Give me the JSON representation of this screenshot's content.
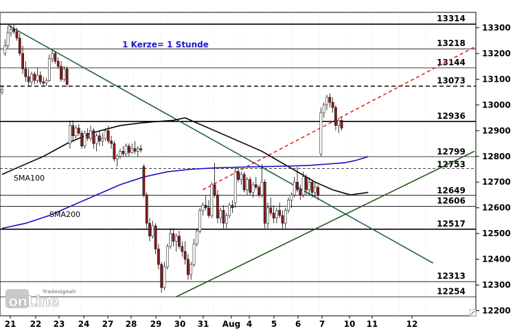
{
  "chart_data": {
    "type": "candlestick",
    "title": "1 Kerze= 1 Stunde",
    "watermark": {
      "brand": "Tradesignal",
      "product": "onLine",
      "trademark": "®"
    },
    "x_ticks": [
      "21",
      "22",
      "23",
      "24",
      "27",
      "28",
      "29",
      "30",
      "31",
      "Aug",
      "4",
      "5",
      "6",
      "7",
      "10",
      "11",
      "12"
    ],
    "y_ticks": [
      13300,
      13200,
      13100,
      13000,
      12900,
      12800,
      12700,
      12600,
      12500,
      12400,
      12300,
      12200
    ],
    "ylim": [
      12180,
      13360
    ],
    "levels": [
      {
        "value": 13314,
        "label": "13314",
        "style": "solid",
        "label_align": "default"
      },
      {
        "value": 13218,
        "label": "13218",
        "style": "solid",
        "label_align": "default"
      },
      {
        "value": 13144,
        "label": "13144",
        "style": "solid",
        "label_align": "default"
      },
      {
        "value": 13073,
        "label": "13073",
        "style": "dashed",
        "label_align": "default"
      },
      {
        "value": 12936,
        "label": "12936",
        "style": "solid",
        "label_align": "default"
      },
      {
        "value": 12799,
        "label": "12799",
        "style": "solid",
        "label_align": "above"
      },
      {
        "value": 12753,
        "label": "12753",
        "style": "dotted",
        "label_align": "mid"
      },
      {
        "value": 12649,
        "label": "12649",
        "style": "solid",
        "label_align": "above"
      },
      {
        "value": 12606,
        "label": "12606",
        "style": "solid",
        "label_align": "default"
      },
      {
        "value": 12517,
        "label": "12517",
        "style": "solid",
        "label_align": "default"
      },
      {
        "value": 12313,
        "label": "12313",
        "style": "solid",
        "label_align": "default"
      },
      {
        "value": 12254,
        "label": "12254",
        "style": "solid",
        "label_align": "default"
      }
    ],
    "indicators": [
      {
        "name": "SMA100",
        "color": "#000000"
      },
      {
        "name": "SMA200",
        "color": "#1010c8"
      }
    ],
    "colors": {
      "bull": "#ffffff",
      "bear": "#8b1a1a",
      "downtrend": "#1f5e4e",
      "uptrend": "#1e5a14",
      "resistance": "#e02020",
      "title": "#1a1acc"
    },
    "candles": [
      [
        13050,
        13075,
        13040,
        13060
      ],
      [
        13200,
        13255,
        13190,
        13230
      ],
      [
        13230,
        13305,
        13220,
        13280
      ],
      [
        13280,
        13312,
        13265,
        13295
      ],
      [
        13295,
        13314,
        13275,
        13285
      ],
      [
        13285,
        13300,
        13250,
        13260
      ],
      [
        13260,
        13280,
        13190,
        13200
      ],
      [
        13200,
        13230,
        13120,
        13140
      ],
      [
        13140,
        13170,
        13090,
        13110
      ],
      [
        13110,
        13140,
        13070,
        13090
      ],
      [
        13090,
        13130,
        13075,
        13120
      ],
      [
        13120,
        13130,
        13080,
        13095
      ],
      [
        13095,
        13145,
        13085,
        13115
      ],
      [
        13115,
        13130,
        13080,
        13090
      ],
      [
        13090,
        13110,
        13072,
        13085
      ],
      [
        13085,
        13105,
        13073,
        13095
      ],
      [
        13095,
        13195,
        13090,
        13180
      ],
      [
        13180,
        13215,
        13165,
        13200
      ],
      [
        13200,
        13210,
        13160,
        13170
      ],
      [
        13170,
        13185,
        13140,
        13150
      ],
      [
        13150,
        13170,
        13090,
        13100
      ],
      [
        13100,
        13150,
        13090,
        13140
      ],
      [
        13140,
        13150,
        13070,
        13080
      ],
      [
        12850,
        12940,
        12830,
        12920
      ],
      [
        12920,
        12940,
        12860,
        12880
      ],
      [
        12880,
        12920,
        12870,
        12910
      ],
      [
        12910,
        12925,
        12880,
        12890
      ],
      [
        12890,
        12900,
        12830,
        12840
      ],
      [
        12840,
        12900,
        12830,
        12890
      ],
      [
        12890,
        12910,
        12860,
        12870
      ],
      [
        12870,
        12920,
        12860,
        12900
      ],
      [
        12900,
        12910,
        12830,
        12850
      ],
      [
        12850,
        12890,
        12820,
        12880
      ],
      [
        12880,
        12900,
        12840,
        12860
      ],
      [
        12860,
        12890,
        12840,
        12870
      ],
      [
        12870,
        12910,
        12860,
        12900
      ],
      [
        12900,
        12920,
        12850,
        12860
      ],
      [
        12860,
        12880,
        12830,
        12850
      ],
      [
        12850,
        12860,
        12780,
        12790
      ],
      [
        12790,
        12810,
        12760,
        12800
      ],
      [
        12800,
        12830,
        12790,
        12820
      ],
      [
        12820,
        12840,
        12800,
        12810
      ],
      [
        12810,
        12850,
        12800,
        12840
      ],
      [
        12840,
        12850,
        12800,
        12815
      ],
      [
        12815,
        12850,
        12810,
        12830
      ],
      [
        12830,
        12860,
        12810,
        12820
      ],
      [
        12820,
        12840,
        12800,
        12830
      ],
      [
        12830,
        12845,
        12815,
        12825
      ],
      [
        12760,
        12770,
        12640,
        12650
      ],
      [
        12650,
        12660,
        12520,
        12540
      ],
      [
        12540,
        12560,
        12470,
        12490
      ],
      [
        12490,
        12550,
        12480,
        12530
      ],
      [
        12530,
        12540,
        12420,
        12440
      ],
      [
        12440,
        12460,
        12360,
        12380
      ],
      [
        12380,
        12390,
        12270,
        12290
      ],
      [
        12290,
        12390,
        12280,
        12370
      ],
      [
        12370,
        12460,
        12360,
        12450
      ],
      [
        12450,
        12520,
        12440,
        12500
      ],
      [
        12500,
        12520,
        12450,
        12470
      ],
      [
        12470,
        12500,
        12430,
        12490
      ],
      [
        12490,
        12510,
        12440,
        12450
      ],
      [
        12450,
        12470,
        12410,
        12430
      ],
      [
        12430,
        12470,
        12380,
        12400
      ],
      [
        12400,
        12420,
        12320,
        12340
      ],
      [
        12340,
        12390,
        12320,
        12380
      ],
      [
        12380,
        12480,
        12370,
        12460
      ],
      [
        12460,
        12520,
        12450,
        12510
      ],
      [
        12510,
        12600,
        12500,
        12590
      ],
      [
        12590,
        12620,
        12570,
        12610
      ],
      [
        12610,
        12650,
        12590,
        12600
      ],
      [
        12600,
        12630,
        12560,
        12570
      ],
      [
        12570,
        12700,
        12560,
        12690
      ],
      [
        12690,
        12775,
        12640,
        12650
      ],
      [
        12650,
        12670,
        12540,
        12560
      ],
      [
        12560,
        12600,
        12540,
        12590
      ],
      [
        12590,
        12610,
        12520,
        12540
      ],
      [
        12540,
        12580,
        12520,
        12570
      ],
      [
        12570,
        12620,
        12560,
        12610
      ],
      [
        12610,
        12630,
        12580,
        12600
      ],
      [
        12620,
        12760,
        12600,
        12740
      ],
      [
        12740,
        12760,
        12700,
        12710
      ],
      [
        12710,
        12740,
        12690,
        12730
      ],
      [
        12730,
        12740,
        12660,
        12670
      ],
      [
        12670,
        12720,
        12650,
        12710
      ],
      [
        12710,
        12720,
        12650,
        12660
      ],
      [
        12660,
        12700,
        12640,
        12690
      ],
      [
        12690,
        12720,
        12670,
        12680
      ],
      [
        12680,
        12690,
        12640,
        12650
      ],
      [
        12650,
        12770,
        12640,
        12700
      ],
      [
        12700,
        12710,
        12520,
        12540
      ],
      [
        12540,
        12620,
        12520,
        12600
      ],
      [
        12600,
        12640,
        12570,
        12580
      ],
      [
        12580,
        12610,
        12540,
        12560
      ],
      [
        12560,
        12600,
        12540,
        12590
      ],
      [
        12590,
        12620,
        12560,
        12570
      ],
      [
        12570,
        12590,
        12520,
        12540
      ],
      [
        12540,
        12600,
        12520,
        12590
      ],
      [
        12590,
        12640,
        12580,
        12630
      ],
      [
        12630,
        12660,
        12600,
        12650
      ],
      [
        12650,
        12720,
        12640,
        12700
      ],
      [
        12700,
        12760,
        12660,
        12670
      ],
      [
        12670,
        12690,
        12630,
        12650
      ],
      [
        12650,
        12740,
        12640,
        12720
      ],
      [
        12720,
        12730,
        12650,
        12670
      ],
      [
        12670,
        12720,
        12650,
        12700
      ],
      [
        12700,
        12710,
        12640,
        12660
      ],
      [
        12660,
        12700,
        12640,
        12680
      ],
      [
        12680,
        12690,
        12630,
        12650
      ],
      [
        12810,
        12990,
        12800,
        12970
      ],
      [
        12970,
        13010,
        12950,
        13000
      ],
      [
        13000,
        13040,
        12980,
        13030
      ],
      [
        13030,
        13045,
        12990,
        13010
      ],
      [
        13010,
        13030,
        12970,
        12990
      ],
      [
        12990,
        13000,
        12900,
        12920
      ],
      [
        12920,
        12950,
        12890,
        12940
      ],
      [
        12940,
        12950,
        12900,
        12910
      ]
    ],
    "sma100": [
      [
        0,
        12730
      ],
      [
        6,
        12760
      ],
      [
        14,
        12800
      ],
      [
        22,
        12850
      ],
      [
        30,
        12890
      ],
      [
        40,
        12920
      ],
      [
        47,
        12930
      ],
      [
        52,
        12935
      ],
      [
        58,
        12940
      ],
      [
        62,
        12950
      ],
      [
        66,
        12930
      ],
      [
        72,
        12900
      ],
      [
        80,
        12860
      ],
      [
        88,
        12820
      ],
      [
        94,
        12780
      ],
      [
        100,
        12740
      ],
      [
        106,
        12700
      ],
      [
        112,
        12670
      ],
      [
        118,
        12650
      ],
      [
        124,
        12660
      ]
    ],
    "sma200": [
      [
        0,
        12520
      ],
      [
        8,
        12540
      ],
      [
        16,
        12570
      ],
      [
        24,
        12610
      ],
      [
        32,
        12650
      ],
      [
        40,
        12690
      ],
      [
        48,
        12720
      ],
      [
        56,
        12740
      ],
      [
        64,
        12750
      ],
      [
        72,
        12755
      ],
      [
        80,
        12758
      ],
      [
        88,
        12760
      ],
      [
        96,
        12762
      ],
      [
        104,
        12765
      ],
      [
        110,
        12770
      ],
      [
        116,
        12775
      ],
      [
        120,
        12785
      ],
      [
        124,
        12799
      ]
    ],
    "downtrend": {
      "from": [
        2,
        13310
      ],
      "to": [
        146,
        12385
      ]
    },
    "uptrend": {
      "from": [
        59,
        12254
      ],
      "to": [
        160,
        12820
      ]
    },
    "resistance": {
      "from": [
        68,
        12670
      ],
      "to": [
        160,
        13225
      ]
    },
    "date_boundaries": [
      0,
      9,
      18,
      27,
      36,
      45,
      54,
      63,
      72,
      81,
      90,
      99,
      108,
      117,
      126,
      135,
      144
    ]
  }
}
